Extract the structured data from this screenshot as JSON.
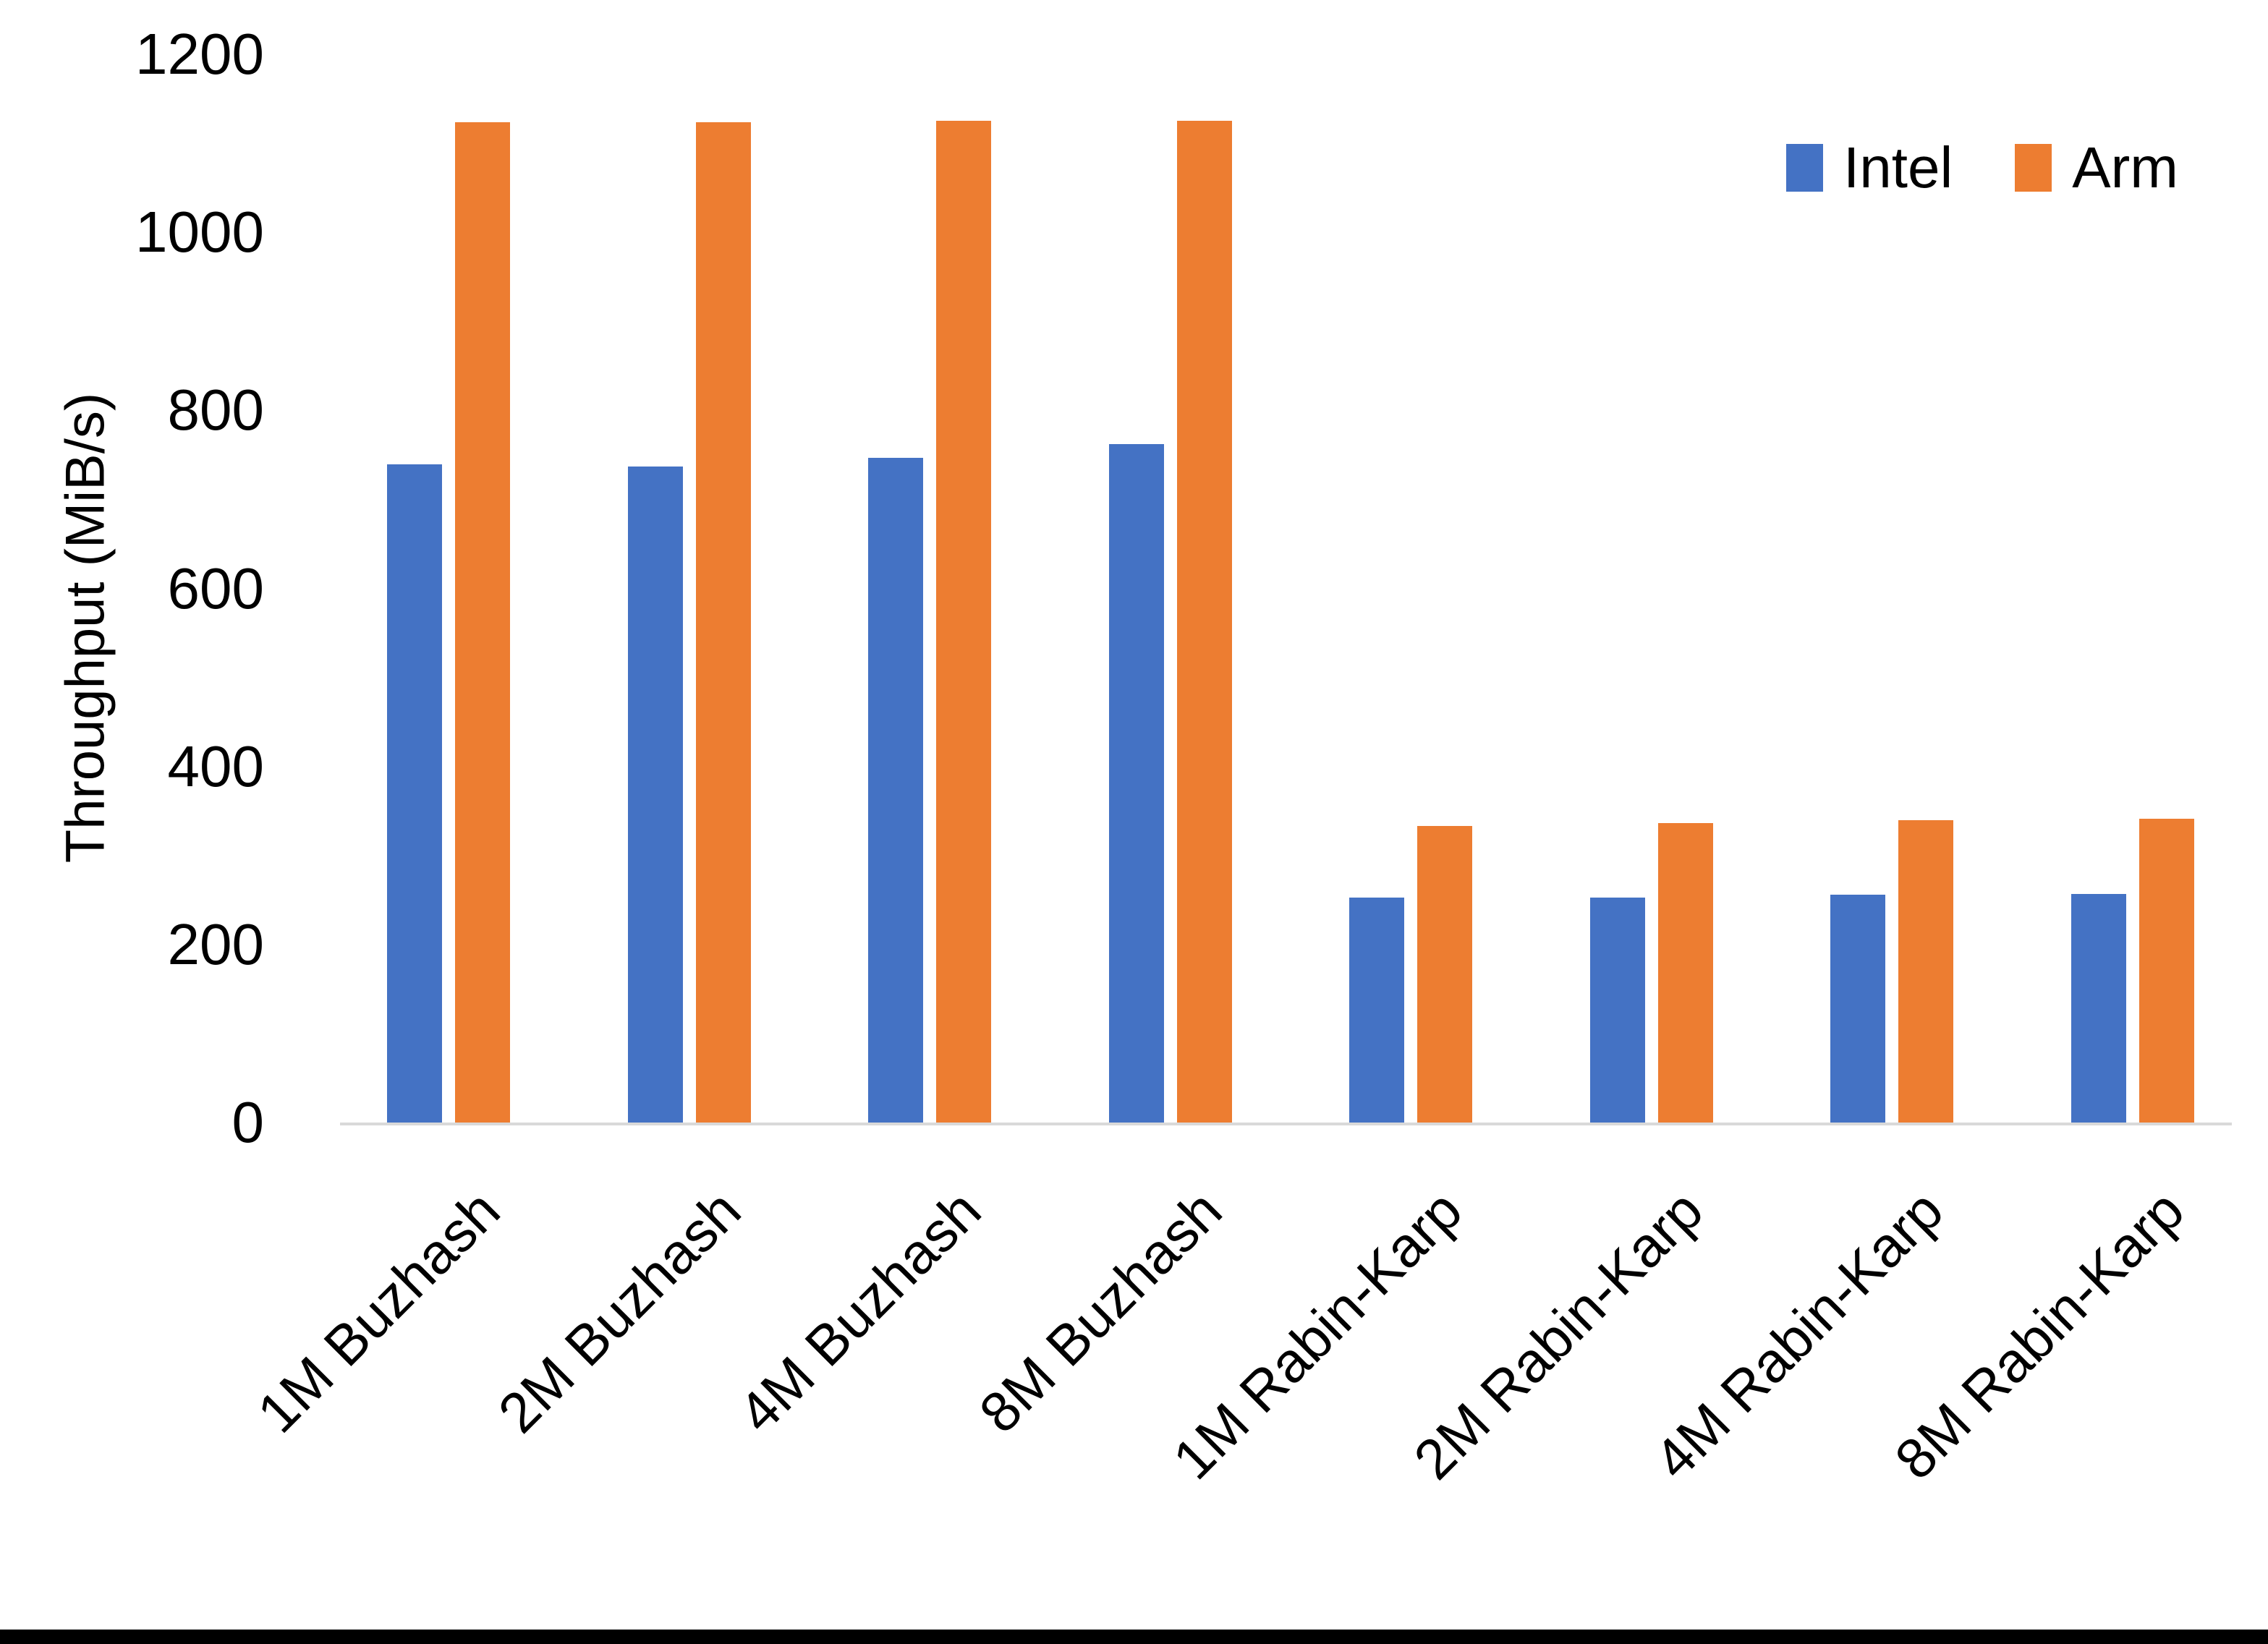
{
  "chart_data": {
    "type": "bar",
    "title": "",
    "ylabel": "Throughput (MiB/s)",
    "xlabel": "",
    "ylim": [
      0,
      1200
    ],
    "ytick_step": 200,
    "yticks": [
      "0",
      "200",
      "400",
      "600",
      "800",
      "1000",
      "1200"
    ],
    "grid": false,
    "legend_position": "top-right",
    "categories": [
      "1M Buzhash",
      "2M Buzhash",
      "4M Buzhash",
      "8M Buzhash",
      "1M Rabin-Karp",
      "2M Rabin-Karp",
      "4M Rabin-Karp",
      "8M Rabin-Karp"
    ],
    "series": [
      {
        "name": "Intel",
        "color": "#4472C4",
        "values": [
          739,
          737,
          747,
          762,
          253,
          253,
          256,
          257
        ]
      },
      {
        "name": "Arm",
        "color": "#ED7D31",
        "values": [
          1124,
          1124,
          1125,
          1125,
          333,
          336,
          340,
          341
        ]
      }
    ],
    "axis_line_color": "#D9D9D9",
    "text_color": "#000000"
  }
}
